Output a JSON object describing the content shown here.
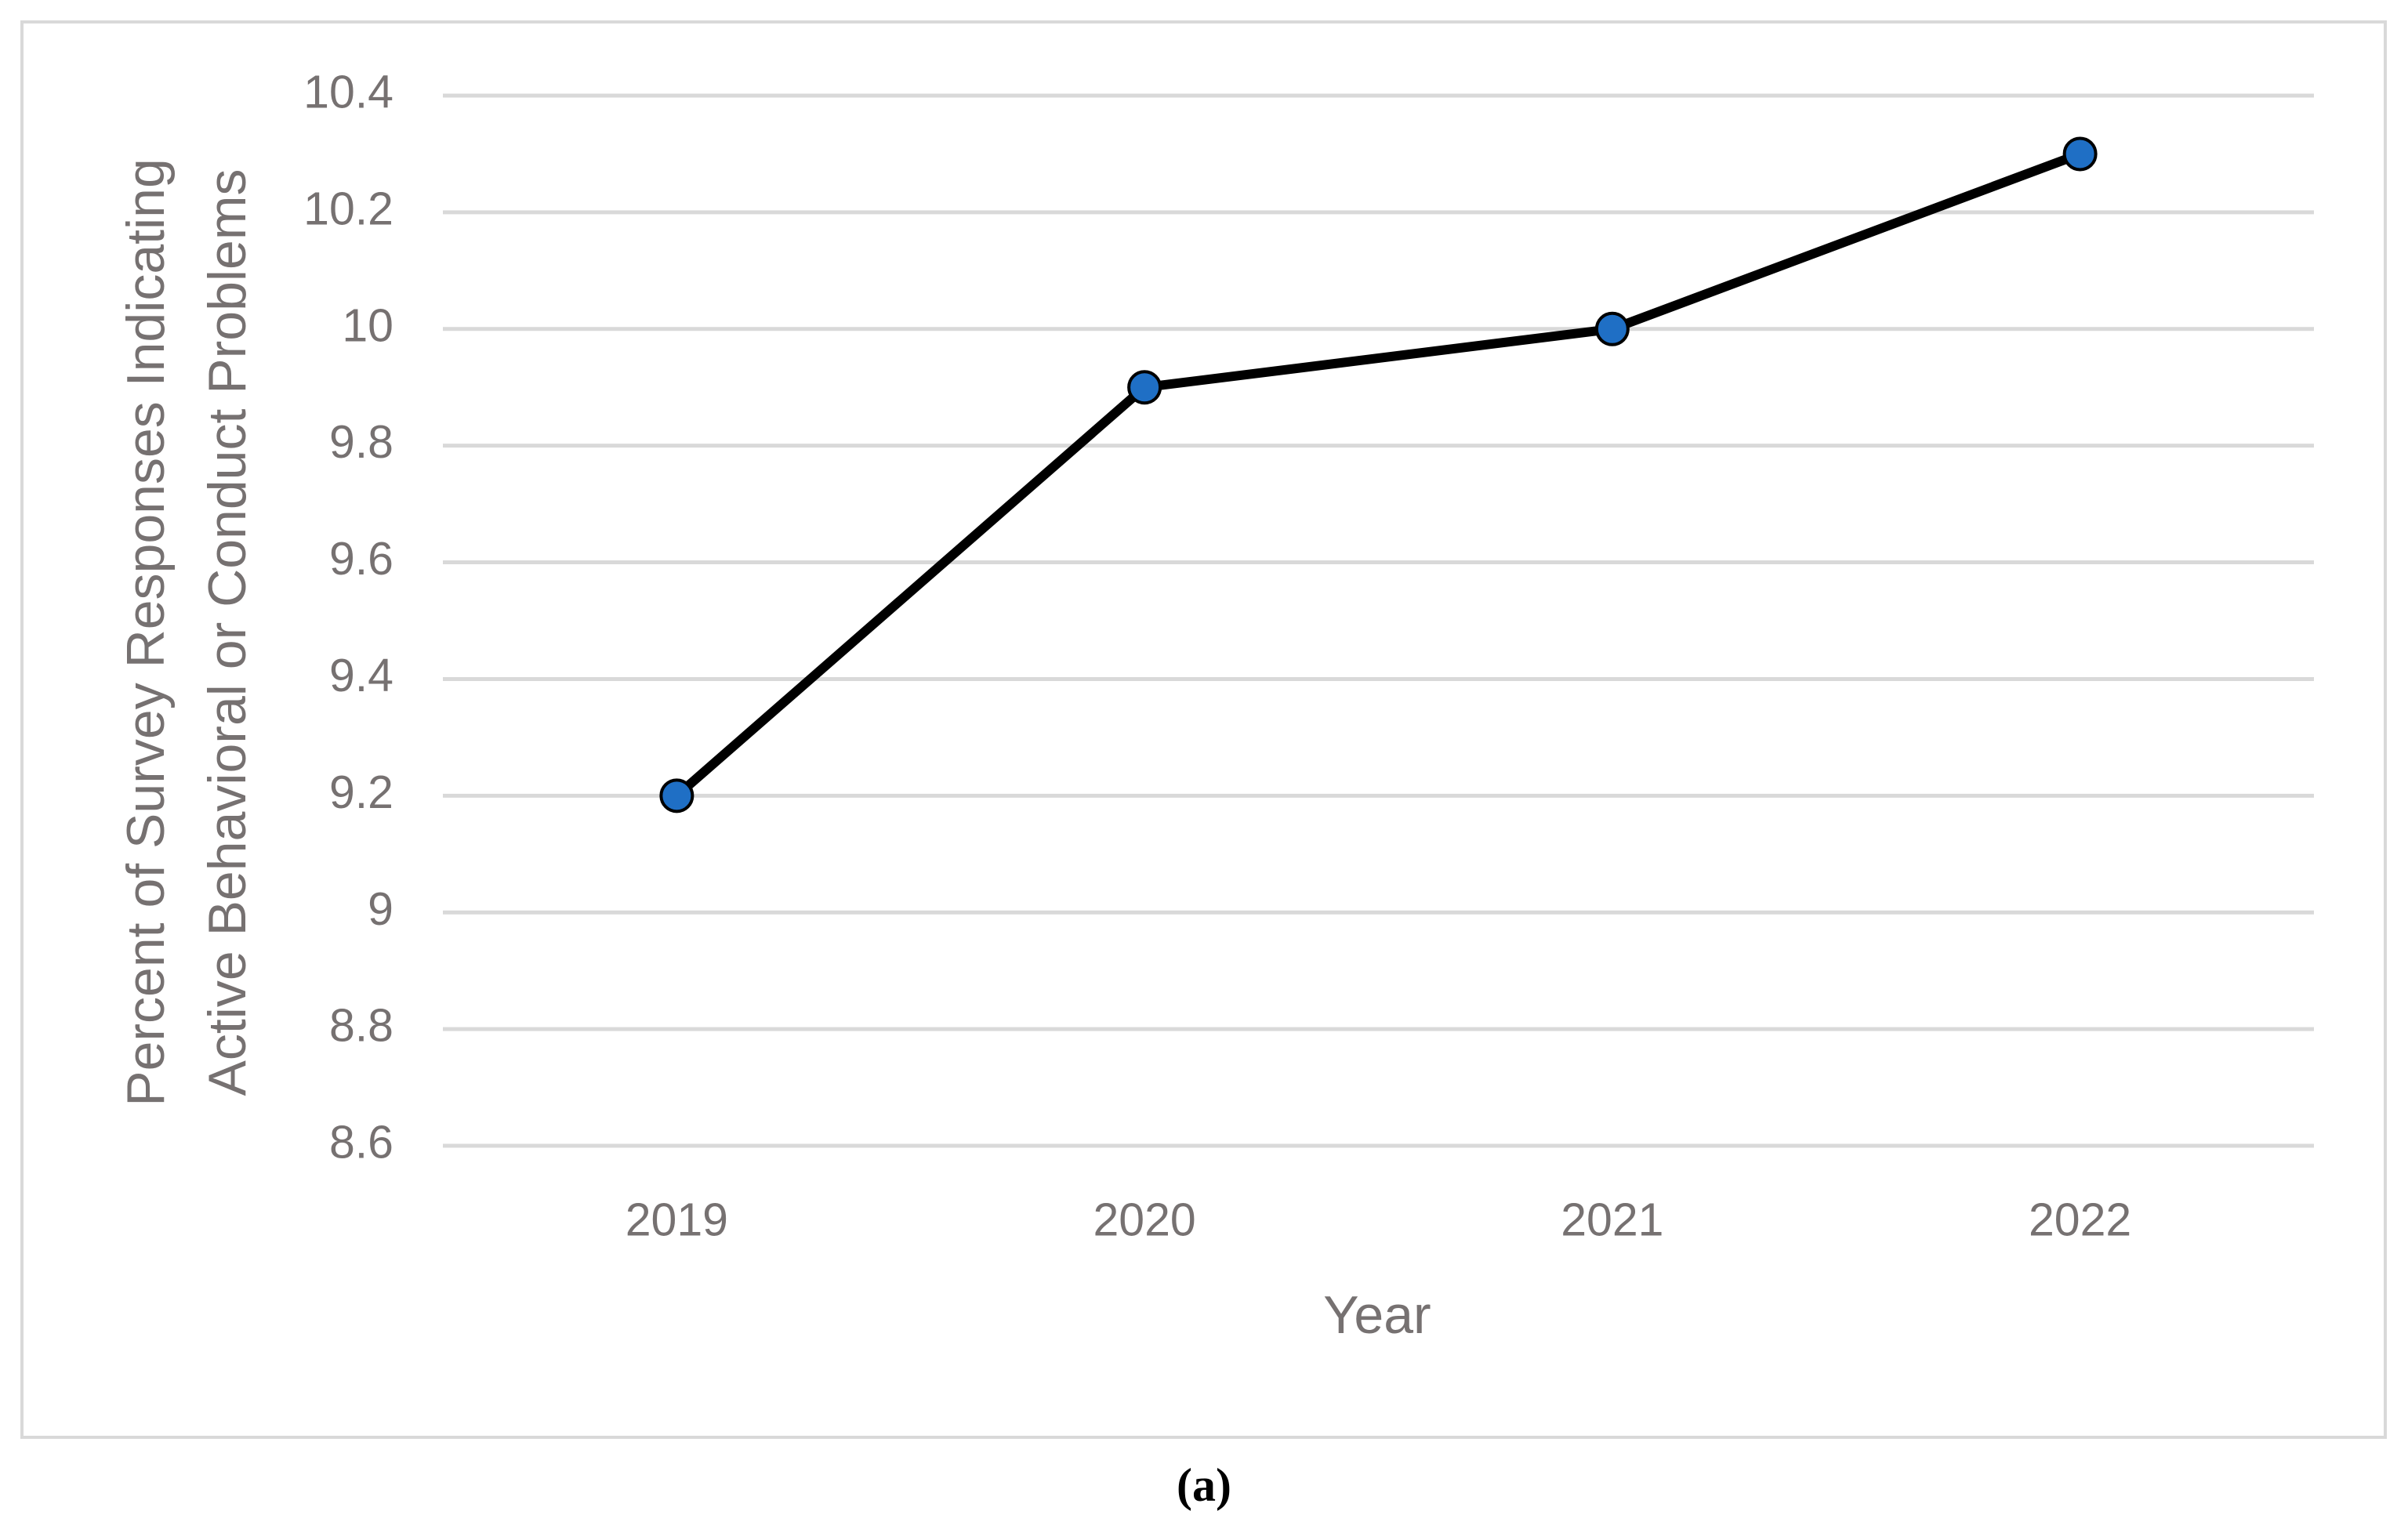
{
  "chart_data": {
    "type": "line",
    "ylabel": [
      "Percent of Survey Responses Indicating",
      "Active Behavioral or Conduct Problems"
    ],
    "xlabel": "Year",
    "categories": [
      "2019",
      "2020",
      "2021",
      "2022"
    ],
    "series": [
      {
        "color": "#1f6fc5",
        "values": [
          9.2,
          9.9,
          10.0,
          10.3
        ]
      }
    ],
    "ylim": [
      8.6,
      10.4
    ],
    "yticks": [
      8.6,
      8.8,
      9,
      9.2,
      9.4,
      9.6,
      9.8,
      10,
      10.2,
      10.4
    ],
    "grid": true
  },
  "caption": "(a)"
}
